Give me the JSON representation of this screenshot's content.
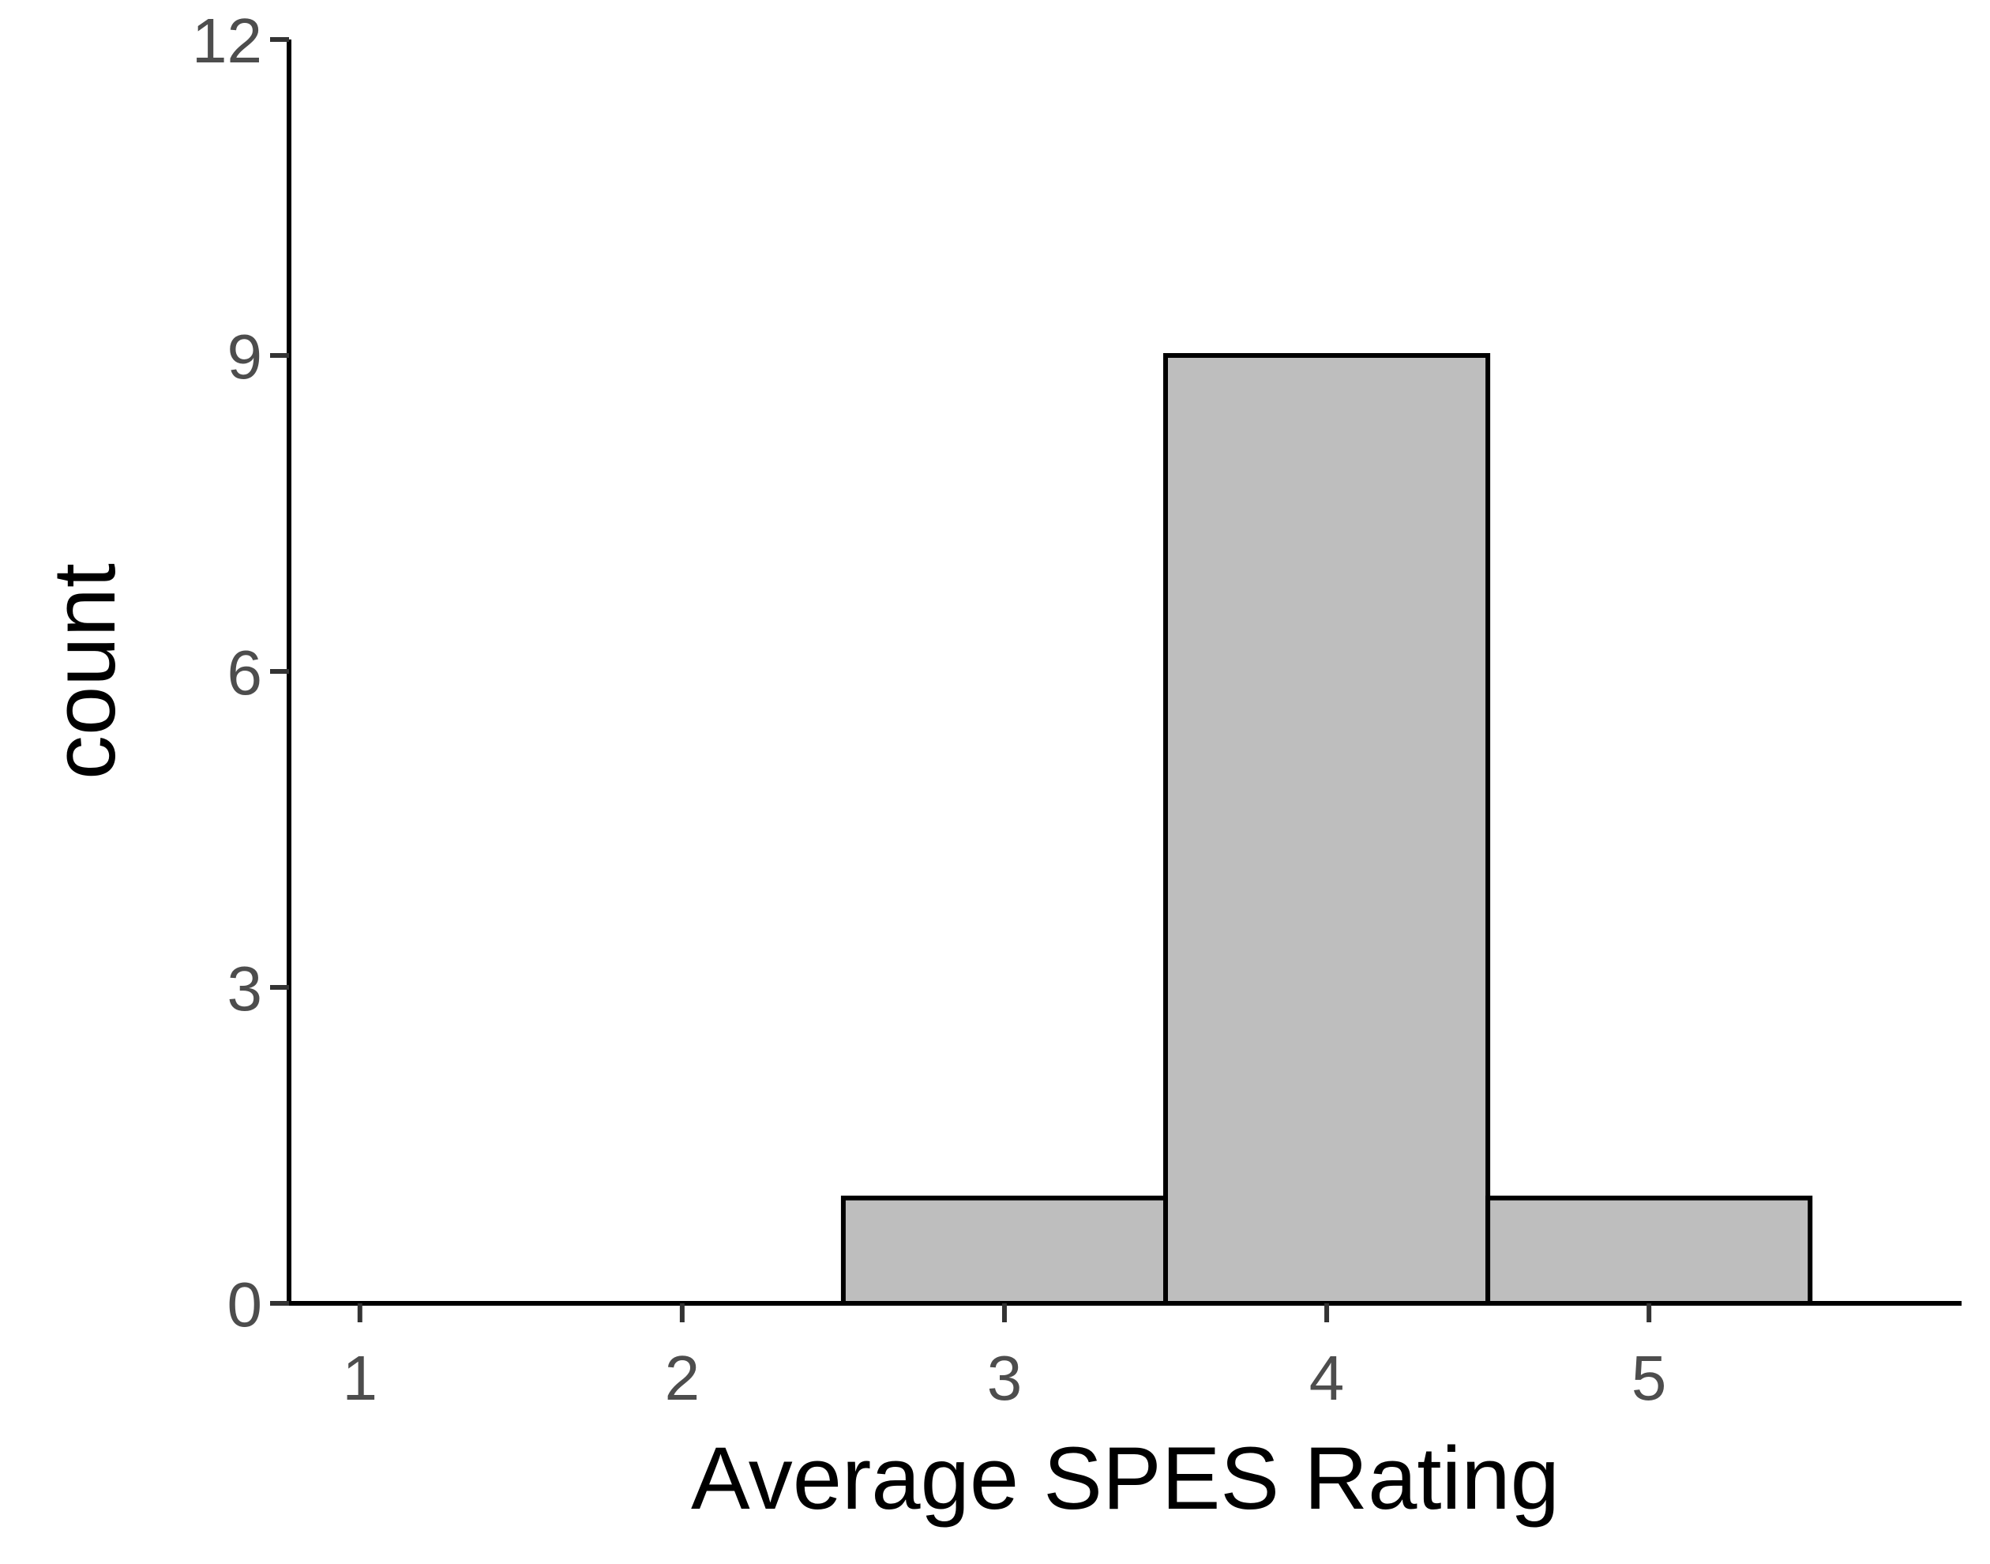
{
  "chart_data": {
    "type": "bar",
    "subtype": "histogram",
    "title": "",
    "xlabel": "Average SPES Rating",
    "ylabel": "count",
    "bins": [
      {
        "x0": 2.5,
        "x1": 3.5,
        "count": 1
      },
      {
        "x0": 3.5,
        "x1": 4.5,
        "count": 9
      },
      {
        "x0": 4.5,
        "x1": 5.5,
        "count": 1
      }
    ],
    "xlim": [
      0.78,
      5.97
    ],
    "ylim": [
      0,
      12
    ],
    "xticks": [
      1,
      2,
      3,
      4,
      5
    ],
    "xtick_labels": [
      "1",
      "2",
      "3",
      "4",
      "5"
    ],
    "yticks": [
      0,
      3,
      6,
      9,
      12
    ],
    "ytick_labels": [
      "0",
      "3",
      "6",
      "9",
      "12"
    ],
    "grid": false,
    "legend": "none",
    "colors": {
      "bar_fill": "#bebebe",
      "bar_stroke": "#000000",
      "axis": "#000000",
      "tick_label": "#4d4d4d",
      "axis_title": "#000000",
      "background": "#ffffff"
    }
  }
}
